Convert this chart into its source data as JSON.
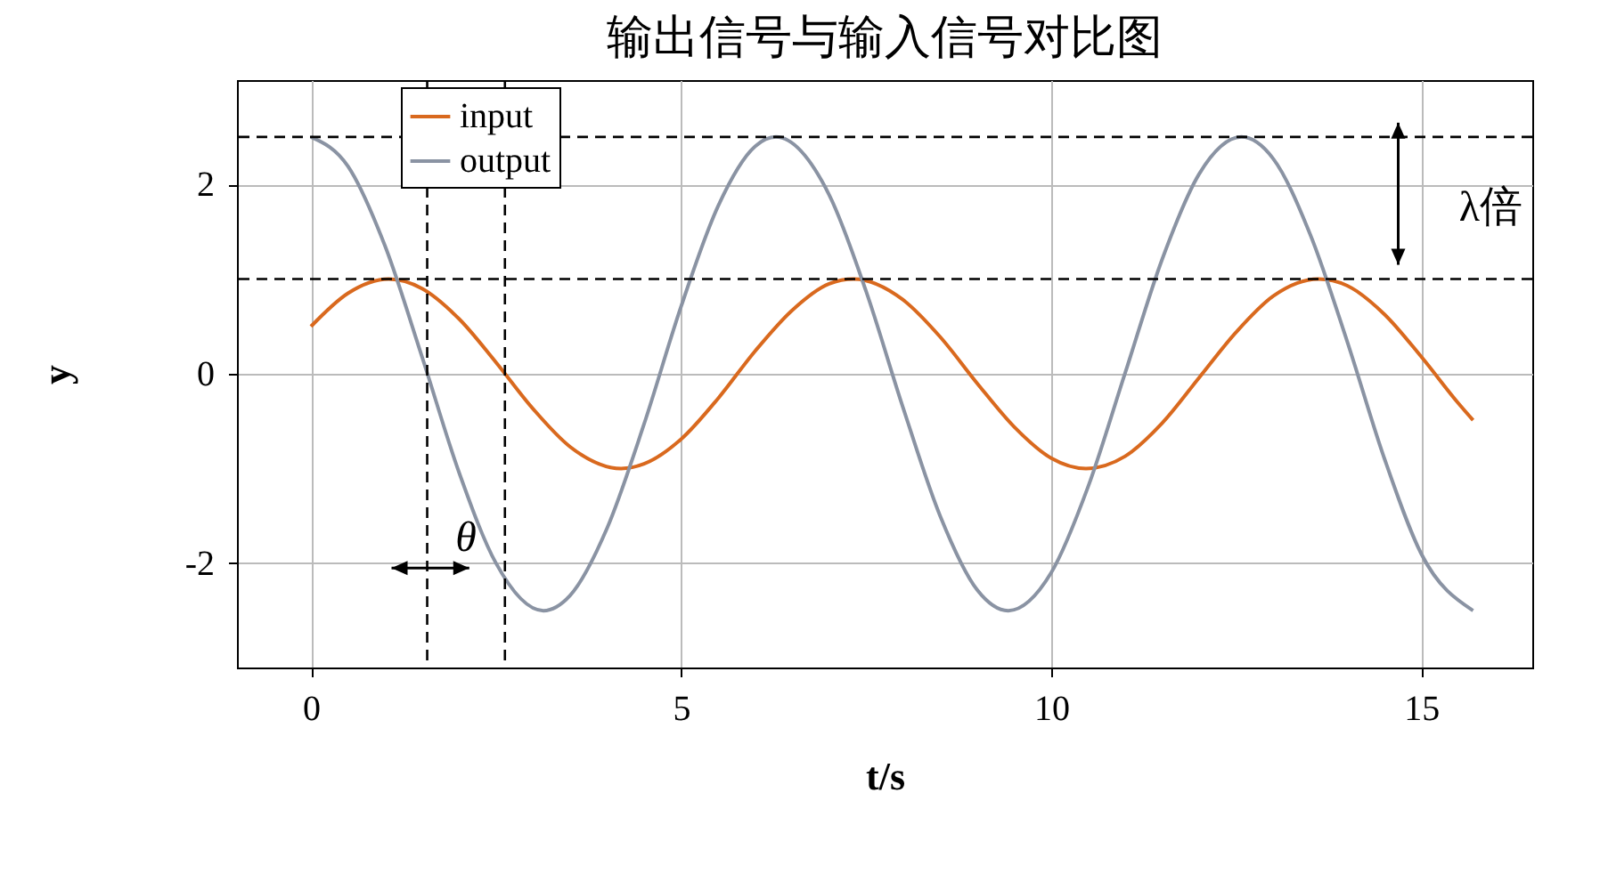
{
  "chart_data": {
    "type": "line",
    "title": "输出信号与输入信号对比图",
    "xlabel": "t/s",
    "ylabel": "y",
    "xlim": [
      -1,
      16.5
    ],
    "xticks": [
      0,
      5,
      10,
      15
    ],
    "ylim": [
      -3.1,
      3.1
    ],
    "yticks": [
      -2,
      0,
      2
    ],
    "grid": true,
    "legend": "top left",
    "line_style": "solid",
    "marker": "none",
    "series": [
      {
        "name": "input",
        "color": "#d9691e",
        "x": [
          0,
          0.5,
          1.05,
          1.5,
          2,
          2.5,
          3,
          3.5,
          4.19,
          4.5,
          5,
          5.5,
          6,
          6.5,
          7,
          7.33,
          8,
          8.5,
          9,
          9.5,
          10,
          10.47,
          11,
          11.5,
          12,
          12.5,
          13,
          13.61,
          14,
          14.5,
          15,
          15.5,
          15.7
        ],
        "values": [
          0.5,
          0.85,
          1,
          0.9,
          0.58,
          0.12,
          -0.37,
          -0.77,
          -1,
          -0.95,
          -0.69,
          -0.26,
          0.24,
          0.67,
          0.95,
          1,
          0.78,
          0.39,
          -0.1,
          -0.56,
          -0.89,
          -1,
          -0.87,
          -0.52,
          -0.04,
          0.44,
          0.82,
          1,
          0.93,
          0.63,
          0.18,
          -0.31,
          -0.49
        ]
      },
      {
        "name": "output",
        "color": "#8a93a3",
        "x": [
          0,
          0.5,
          1,
          1.5,
          2,
          2.5,
          3.14,
          3.5,
          4,
          4.5,
          5,
          5.5,
          6,
          6.28,
          7,
          7.5,
          8,
          8.5,
          9,
          9.42,
          10,
          10.5,
          11,
          11.5,
          12,
          12.57,
          13,
          13.5,
          14,
          14.5,
          15,
          15.7
        ],
        "values": [
          2.5,
          2.19,
          1.35,
          0.18,
          -1.04,
          -2,
          -2.5,
          -2.34,
          -1.63,
          -0.53,
          0.71,
          1.77,
          2.4,
          2.5,
          1.89,
          0.87,
          -0.36,
          -1.5,
          -2.28,
          -2.5,
          -2.1,
          -1.19,
          0.01,
          1.21,
          2.11,
          2.5,
          2.27,
          1.47,
          0.34,
          -0.89,
          -1.9,
          -2.5
        ]
      }
    ],
    "ref_lines": [
      {
        "axis": "x",
        "value": 1.57,
        "color": "#000000",
        "line_style": "dashed"
      },
      {
        "axis": "x",
        "value": 2.62,
        "color": "#000000",
        "line_style": "dashed"
      },
      {
        "axis": "y",
        "value": 2.5,
        "color": "#000000",
        "line_style": "dashed"
      },
      {
        "axis": "y",
        "value": 1,
        "color": "#000000",
        "line_style": "dashed"
      }
    ],
    "annotations": [
      "θ",
      "λ倍"
    ]
  }
}
